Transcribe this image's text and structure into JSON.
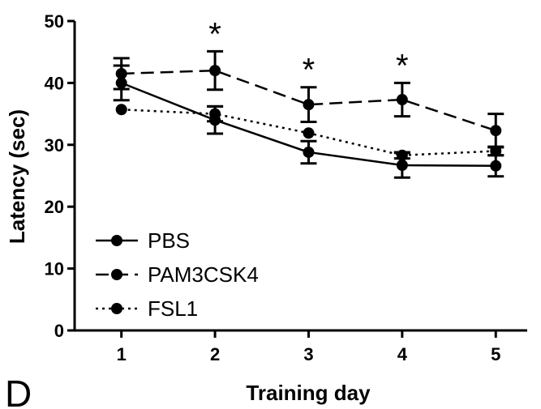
{
  "panel_label": "D",
  "chart_data": {
    "type": "line",
    "xlabel": "Training day",
    "ylabel": "Latency (sec)",
    "x": [
      1,
      2,
      3,
      4,
      5
    ],
    "xlim": [
      0.5,
      5.7
    ],
    "ylim": [
      0,
      50
    ],
    "yticks": [
      0,
      10,
      20,
      30,
      40,
      50
    ],
    "grid": false,
    "legend_position": "bottom-left",
    "series": [
      {
        "name": "PBS",
        "style": "solid",
        "values": [
          40,
          34,
          28.8,
          26.7,
          26.6
        ],
        "errors": [
          2.8,
          2.2,
          1.8,
          2.0,
          1.7
        ]
      },
      {
        "name": "PAM3CSK4",
        "style": "dashed",
        "values": [
          41.5,
          42,
          36.5,
          37.3,
          32.3
        ],
        "errors": [
          2.5,
          3.1,
          2.8,
          2.7,
          2.7
        ]
      },
      {
        "name": "FSL1",
        "style": "dotted",
        "values": [
          35.7,
          35,
          31.9,
          28.3,
          29
        ],
        "errors": [
          0,
          1.2,
          0,
          0.5,
          0.7
        ]
      }
    ],
    "annotations": [
      {
        "x": 2,
        "text": "*"
      },
      {
        "x": 3,
        "text": "*"
      },
      {
        "x": 4,
        "text": "*"
      }
    ]
  }
}
